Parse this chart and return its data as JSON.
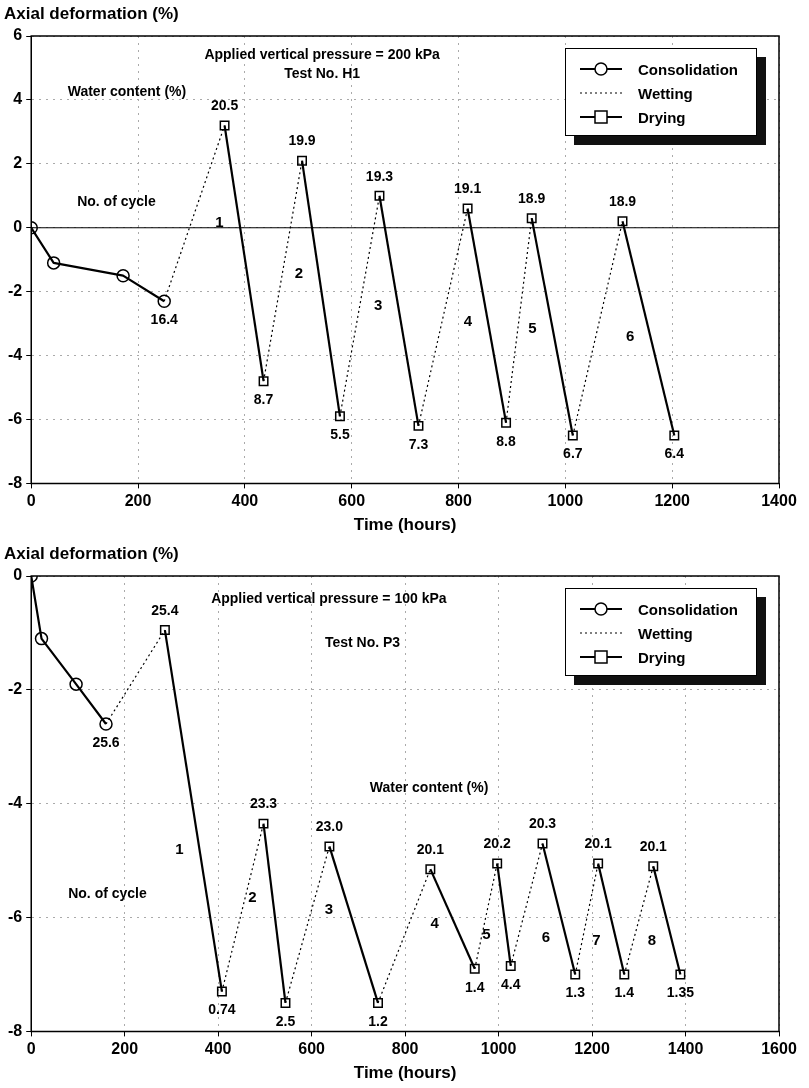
{
  "chart_data": [
    {
      "type": "line",
      "ylabel": "Axial deformation (%)",
      "xlabel": "Time (hours)",
      "xlim": [
        0,
        1400
      ],
      "xticks": [
        0,
        200,
        400,
        600,
        800,
        1000,
        1200,
        1400
      ],
      "ylim": [
        -8,
        6
      ],
      "yticks": [
        -8,
        -6,
        -4,
        -2,
        0,
        2,
        4,
        6
      ],
      "grid": true,
      "legend": "top right",
      "ref_lines": [
        {
          "axis": "y",
          "value": 0,
          "color": "#000000"
        }
      ],
      "series": [
        {
          "name": "Consolidation",
          "color": "#000000",
          "marker": "circle",
          "line_style": "solid",
          "x": [
            0,
            42,
            172,
            249
          ],
          "values": [
            0,
            -1.1,
            -1.5,
            -2.3
          ]
        },
        {
          "name": "Wetting",
          "color": "#000000",
          "line_style": "dotted",
          "x": [
            249,
            362
          ],
          "values": [
            -2.3,
            3.2
          ]
        },
        {
          "name": "Drying",
          "color": "#000000",
          "marker": "square",
          "line_style": "solid",
          "x": [
            362,
            435
          ],
          "values": [
            3.2,
            -4.8
          ]
        },
        {
          "color": "#000000",
          "line_style": "dotted",
          "x": [
            435,
            507
          ],
          "values": [
            -4.8,
            2.1
          ]
        },
        {
          "color": "#000000",
          "marker": "square",
          "line_style": "solid",
          "x": [
            507,
            578
          ],
          "values": [
            2.1,
            -5.9
          ]
        },
        {
          "color": "#000000",
          "line_style": "dotted",
          "x": [
            578,
            652
          ],
          "values": [
            -5.9,
            1.0
          ]
        },
        {
          "color": "#000000",
          "marker": "square",
          "line_style": "solid",
          "x": [
            652,
            725
          ],
          "values": [
            1.0,
            -6.2
          ]
        },
        {
          "color": "#000000",
          "line_style": "dotted",
          "x": [
            725,
            817
          ],
          "values": [
            -6.2,
            0.6
          ]
        },
        {
          "color": "#000000",
          "marker": "square",
          "line_style": "solid",
          "x": [
            817,
            889
          ],
          "values": [
            0.6,
            -6.1
          ]
        },
        {
          "color": "#000000",
          "line_style": "dotted",
          "x": [
            889,
            937
          ],
          "values": [
            -6.1,
            0.3
          ]
        },
        {
          "color": "#000000",
          "marker": "square",
          "line_style": "solid",
          "x": [
            937,
            1014
          ],
          "values": [
            0.3,
            -6.5
          ]
        },
        {
          "color": "#000000",
          "line_style": "dotted",
          "x": [
            1014,
            1107
          ],
          "values": [
            -6.5,
            0.2
          ]
        },
        {
          "color": "#000000",
          "marker": "square",
          "line_style": "solid",
          "x": [
            1107,
            1204
          ],
          "values": [
            0.2,
            -6.5
          ]
        }
      ],
      "annotations": [
        "Applied vertical pressure = 200 kPa",
        "Test No. H1",
        "Water content (%)",
        "No. of cycle",
        {
          "text": "16.4",
          "x": 249,
          "y": -2.3
        },
        {
          "text": "20.5",
          "x": 362,
          "y": 3.2
        },
        {
          "text": "8.7",
          "x": 435,
          "y": -4.8
        },
        {
          "text": "19.9",
          "x": 507,
          "y": 2.1
        },
        {
          "text": "5.5",
          "x": 578,
          "y": -5.9
        },
        {
          "text": "19.3",
          "x": 652,
          "y": 1.0
        },
        {
          "text": "7.3",
          "x": 725,
          "y": -6.2
        },
        {
          "text": "19.1",
          "x": 817,
          "y": 0.6
        },
        {
          "text": "8.8",
          "x": 889,
          "y": -6.1
        },
        {
          "text": "18.9",
          "x": 937,
          "y": 0.3
        },
        {
          "text": "6.7",
          "x": 1014,
          "y": -6.5
        },
        {
          "text": "18.9",
          "x": 1107,
          "y": 0.2
        },
        {
          "text": "6.4",
          "x": 1204,
          "y": -6.5
        },
        {
          "text": "1",
          "x": 390,
          "y": 0.15
        },
        {
          "text": "2",
          "x": 538.5,
          "y": -1.45
        },
        {
          "text": "3",
          "x": 687,
          "y": -2.45
        },
        {
          "text": "4",
          "x": 855,
          "y": -2.95
        },
        {
          "text": "5",
          "x": 976,
          "y": -3.15
        },
        {
          "text": "6",
          "x": 1159,
          "y": -3.4
        }
      ]
    },
    {
      "type": "line",
      "ylabel": "Axial deformation (%)",
      "xlabel": "Time (hours)",
      "xlim": [
        0,
        1600
      ],
      "xticks": [
        0,
        200,
        400,
        600,
        800,
        1000,
        1200,
        1400,
        1600
      ],
      "ylim": [
        -8,
        0
      ],
      "yticks": [
        -8,
        -6,
        -4,
        -2,
        0
      ],
      "grid": true,
      "legend": "top right",
      "series": [
        {
          "name": "Consolidation",
          "color": "#000000",
          "marker": "circle",
          "line_style": "solid",
          "x": [
            0,
            22,
            96,
            160
          ],
          "values": [
            0,
            -1.1,
            -1.9,
            -2.6
          ]
        },
        {
          "name": "Wetting",
          "color": "#000000",
          "line_style": "dotted",
          "x": [
            160,
            286
          ],
          "values": [
            -2.6,
            -0.95
          ]
        },
        {
          "name": "Drying",
          "color": "#000000",
          "marker": "square",
          "line_style": "solid",
          "x": [
            286,
            408
          ],
          "values": [
            -0.95,
            -7.3
          ]
        },
        {
          "color": "#000000",
          "line_style": "dotted",
          "x": [
            408,
            497
          ],
          "values": [
            -7.3,
            -4.35
          ]
        },
        {
          "color": "#000000",
          "marker": "square",
          "line_style": "solid",
          "x": [
            497,
            544
          ],
          "values": [
            -4.35,
            -7.5
          ]
        },
        {
          "color": "#000000",
          "line_style": "dotted",
          "x": [
            544,
            638
          ],
          "values": [
            -7.5,
            -4.75
          ]
        },
        {
          "color": "#000000",
          "marker": "square",
          "line_style": "solid",
          "x": [
            638,
            742
          ],
          "values": [
            -4.75,
            -7.5
          ]
        },
        {
          "color": "#000000",
          "line_style": "dotted",
          "x": [
            742,
            854
          ],
          "values": [
            -7.5,
            -5.15
          ]
        },
        {
          "color": "#000000",
          "marker": "square",
          "line_style": "solid",
          "x": [
            854,
            949
          ],
          "values": [
            -5.15,
            -6.9
          ]
        },
        {
          "color": "#000000",
          "line_style": "dotted",
          "x": [
            949,
            997
          ],
          "values": [
            -6.9,
            -5.05
          ]
        },
        {
          "color": "#000000",
          "marker": "square",
          "line_style": "solid",
          "x": [
            997,
            1026
          ],
          "values": [
            -5.05,
            -6.85
          ]
        },
        {
          "color": "#000000",
          "line_style": "dotted",
          "x": [
            1026,
            1094
          ],
          "values": [
            -6.85,
            -4.7
          ]
        },
        {
          "color": "#000000",
          "marker": "square",
          "line_style": "solid",
          "x": [
            1094,
            1164
          ],
          "values": [
            -4.7,
            -7.0
          ]
        },
        {
          "color": "#000000",
          "line_style": "dotted",
          "x": [
            1164,
            1213
          ],
          "values": [
            -7.0,
            -5.05
          ]
        },
        {
          "color": "#000000",
          "marker": "square",
          "line_style": "solid",
          "x": [
            1213,
            1269
          ],
          "values": [
            -5.05,
            -7.0
          ]
        },
        {
          "color": "#000000",
          "line_style": "dotted",
          "x": [
            1269,
            1331
          ],
          "values": [
            -7.0,
            -5.1
          ]
        },
        {
          "color": "#000000",
          "marker": "square",
          "line_style": "solid",
          "x": [
            1331,
            1389
          ],
          "values": [
            -5.1,
            -7.0
          ]
        }
      ],
      "annotations": [
        "Applied vertical pressure = 100 kPa",
        "Test No. P3",
        "Water content (%)",
        "No. of cycle",
        {
          "text": "25.6",
          "x": 160,
          "y": -2.6
        },
        {
          "text": "25.4",
          "x": 286,
          "y": -0.95
        },
        {
          "text": "0.74",
          "x": 408,
          "y": -7.3
        },
        {
          "text": "23.3",
          "x": 497,
          "y": -4.35
        },
        {
          "text": "2.5",
          "x": 544,
          "y": -7.5
        },
        {
          "text": "23.0",
          "x": 638,
          "y": -4.75
        },
        {
          "text": "1.2",
          "x": 742,
          "y": -7.5
        },
        {
          "text": "20.1",
          "x": 854,
          "y": -5.15
        },
        {
          "text": "1.4",
          "x": 949,
          "y": -6.9
        },
        {
          "text": "20.2",
          "x": 997,
          "y": -5.05
        },
        {
          "text": "4.4",
          "x": 1026,
          "y": -6.85
        },
        {
          "text": "20.3",
          "x": 1094,
          "y": -4.7
        },
        {
          "text": "1.3",
          "x": 1164,
          "y": -7.0
        },
        {
          "text": "20.1",
          "x": 1213,
          "y": -5.05
        },
        {
          "text": "1.4",
          "x": 1269,
          "y": -7.0
        },
        {
          "text": "20.1",
          "x": 1331,
          "y": -5.1
        },
        {
          "text": "1.35",
          "x": 1389,
          "y": -7.0
        },
        {
          "text": "1",
          "x": 360,
          "y": -4.81
        },
        {
          "text": "2",
          "x": 516,
          "y": -5.65
        },
        {
          "text": "3",
          "x": 680,
          "y": -5.86
        },
        {
          "text": "4",
          "x": 906,
          "y": -6.11
        },
        {
          "text": "5",
          "x": 1017,
          "y": -6.31
        },
        {
          "text": "6",
          "x": 1144,
          "y": -6.35
        },
        {
          "text": "7",
          "x": 1252,
          "y": -6.41
        },
        {
          "text": "8",
          "x": 1371,
          "y": -6.41
        }
      ]
    }
  ]
}
